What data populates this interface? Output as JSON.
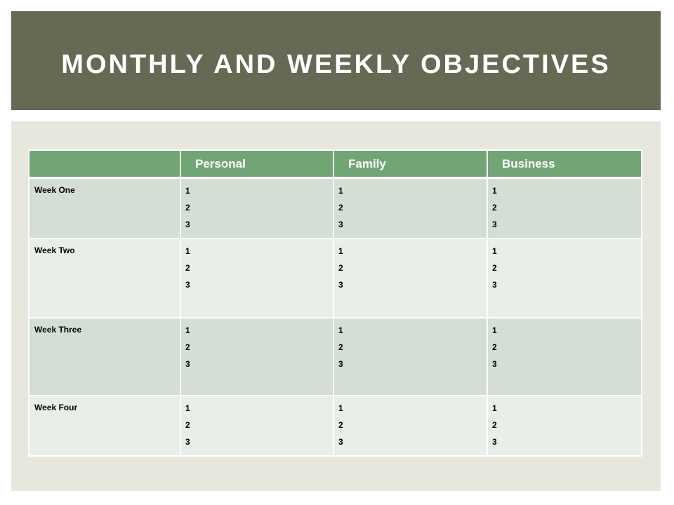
{
  "slide": {
    "title": "MONTHLY AND WEEKLY OBJECTIVES"
  },
  "table": {
    "headers": [
      "",
      "Personal",
      "Family",
      "Business"
    ],
    "rows": [
      {
        "label": "Week One",
        "cells": [
          [
            "1",
            "2",
            "3"
          ],
          [
            "1",
            "2",
            "3"
          ],
          [
            "1",
            "2",
            "3"
          ]
        ]
      },
      {
        "label": "Week Two",
        "cells": [
          [
            "1",
            "2",
            "3"
          ],
          [
            "1",
            "2",
            "3"
          ],
          [
            "1",
            "2",
            "3"
          ]
        ]
      },
      {
        "label": "Week Three",
        "cells": [
          [
            "1",
            "2",
            "3"
          ],
          [
            "1",
            "2",
            "3"
          ],
          [
            "1",
            "2",
            "3"
          ]
        ]
      },
      {
        "label": "Week Four",
        "cells": [
          [
            "1",
            "2",
            "3"
          ],
          [
            "1",
            "2",
            "3"
          ],
          [
            "1",
            "2",
            "3"
          ]
        ]
      }
    ]
  },
  "colors": {
    "title_bar": "#676954",
    "panel": "#e8e7dd",
    "header": "#72a576",
    "row_odd": "#d4ded4",
    "row_even": "#e9eee9"
  }
}
